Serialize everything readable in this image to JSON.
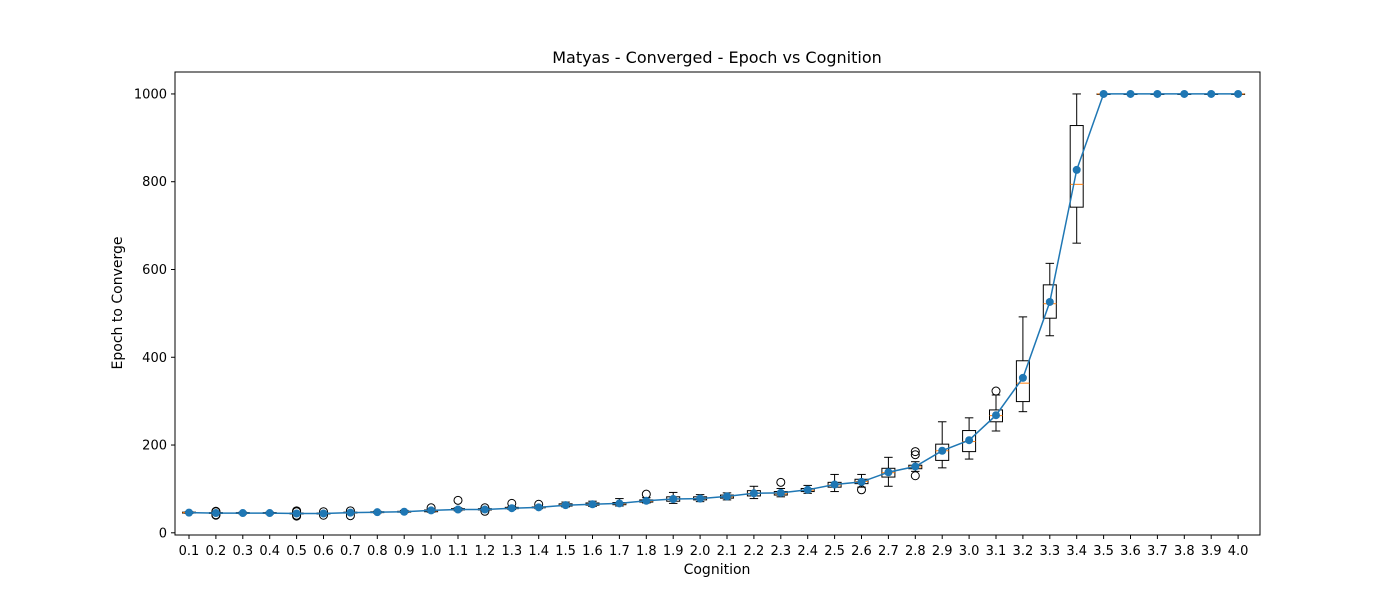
{
  "chart_data": {
    "type": "box",
    "title": "Matyas - Converged - Epoch vs Cognition",
    "xlabel": "Cognition",
    "ylabel": "Epoch to Converge",
    "ylim": [
      -5,
      1050
    ],
    "yticks": [
      0,
      200,
      400,
      600,
      800,
      1000
    ],
    "grid": false,
    "colors": {
      "box": "#000000",
      "median": "#ff7f0e",
      "mean": "#1f77b4"
    },
    "categories": [
      "0.1",
      "0.2",
      "0.3",
      "0.4",
      "0.5",
      "0.6",
      "0.7",
      "0.8",
      "0.9",
      "1.0",
      "1.1",
      "1.2",
      "1.3",
      "1.4",
      "1.5",
      "1.6",
      "1.7",
      "1.8",
      "1.9",
      "2.0",
      "2.1",
      "2.2",
      "2.3",
      "2.4",
      "2.5",
      "2.6",
      "2.7",
      "2.8",
      "2.9",
      "3.0",
      "3.1",
      "3.2",
      "3.3",
      "3.4",
      "3.5",
      "3.6",
      "3.7",
      "3.8",
      "3.9",
      "4.0"
    ],
    "boxes": [
      {
        "whislo": 44,
        "q1": 45,
        "med": 46,
        "q3": 47,
        "whishi": 48,
        "fliers": [],
        "mean": 46
      },
      {
        "whislo": 42,
        "q1": 44,
        "med": 45,
        "q3": 46,
        "whishi": 47,
        "fliers": [
          40,
          41,
          48,
          49
        ],
        "mean": 45
      },
      {
        "whislo": 43,
        "q1": 44,
        "med": 45,
        "q3": 46,
        "whishi": 47,
        "fliers": [],
        "mean": 45
      },
      {
        "whislo": 43,
        "q1": 44,
        "med": 45,
        "q3": 46,
        "whishi": 47,
        "fliers": [],
        "mean": 45
      },
      {
        "whislo": 41,
        "q1": 43,
        "med": 44,
        "q3": 45,
        "whishi": 46,
        "fliers": [
          38,
          40,
          48,
          50
        ],
        "mean": 44
      },
      {
        "whislo": 42,
        "q1": 43,
        "med": 44,
        "q3": 45,
        "whishi": 46,
        "fliers": [
          40,
          48
        ],
        "mean": 44
      },
      {
        "whislo": 43,
        "q1": 45,
        "med": 46,
        "q3": 47,
        "whishi": 48,
        "fliers": [
          39,
          50
        ],
        "mean": 46
      },
      {
        "whislo": 45,
        "q1": 46,
        "med": 47,
        "q3": 48,
        "whishi": 49,
        "fliers": [],
        "mean": 47
      },
      {
        "whislo": 46,
        "q1": 47,
        "med": 48,
        "q3": 49,
        "whishi": 51,
        "fliers": [],
        "mean": 48
      },
      {
        "whislo": 47,
        "q1": 48,
        "med": 50,
        "q3": 52,
        "whishi": 54,
        "fliers": [
          57
        ],
        "mean": 51
      },
      {
        "whislo": 50,
        "q1": 52,
        "med": 53,
        "q3": 55,
        "whishi": 57,
        "fliers": [
          74
        ],
        "mean": 53
      },
      {
        "whislo": 50,
        "q1": 52,
        "med": 53,
        "q3": 55,
        "whishi": 57,
        "fliers": [
          49,
          57
        ],
        "mean": 53
      },
      {
        "whislo": 53,
        "q1": 55,
        "med": 56,
        "q3": 58,
        "whishi": 60,
        "fliers": [
          67
        ],
        "mean": 56
      },
      {
        "whislo": 55,
        "q1": 57,
        "med": 58,
        "q3": 59,
        "whishi": 61,
        "fliers": [
          65
        ],
        "mean": 58
      },
      {
        "whislo": 59,
        "q1": 61,
        "med": 63,
        "q3": 66,
        "whishi": 70,
        "fliers": [],
        "mean": 63
      },
      {
        "whislo": 60,
        "q1": 63,
        "med": 65,
        "q3": 68,
        "whishi": 72,
        "fliers": [],
        "mean": 65
      },
      {
        "whislo": 61,
        "q1": 64,
        "med": 66,
        "q3": 69,
        "whishi": 78,
        "fliers": [],
        "mean": 67
      },
      {
        "whislo": 68,
        "q1": 70,
        "med": 72,
        "q3": 75,
        "whishi": 80,
        "fliers": [
          88
        ],
        "mean": 73
      },
      {
        "whislo": 67,
        "q1": 72,
        "med": 77,
        "q3": 82,
        "whishi": 92,
        "fliers": [],
        "mean": 77
      },
      {
        "whislo": 71,
        "q1": 75,
        "med": 78,
        "q3": 82,
        "whishi": 87,
        "fliers": [],
        "mean": 78
      },
      {
        "whislo": 75,
        "q1": 79,
        "med": 82,
        "q3": 86,
        "whishi": 91,
        "fliers": [],
        "mean": 83
      },
      {
        "whislo": 78,
        "q1": 84,
        "med": 90,
        "q3": 96,
        "whishi": 106,
        "fliers": [],
        "mean": 90
      },
      {
        "whislo": 82,
        "q1": 86,
        "med": 89,
        "q3": 94,
        "whishi": 101,
        "fliers": [
          115
        ],
        "mean": 91
      },
      {
        "whislo": 90,
        "q1": 94,
        "med": 97,
        "q3": 101,
        "whishi": 108,
        "fliers": [],
        "mean": 98
      },
      {
        "whislo": 94,
        "q1": 104,
        "med": 109,
        "q3": 115,
        "whishi": 133,
        "fliers": [],
        "mean": 110
      },
      {
        "whislo": 104,
        "q1": 112,
        "med": 117,
        "q3": 122,
        "whishi": 133,
        "fliers": [
          98
        ],
        "mean": 116
      },
      {
        "whislo": 106,
        "q1": 127,
        "med": 137,
        "q3": 147,
        "whishi": 172,
        "fliers": [],
        "mean": 138
      },
      {
        "whislo": 140,
        "q1": 146,
        "med": 150,
        "q3": 154,
        "whishi": 162,
        "fliers": [
          130,
          178,
          185
        ],
        "mean": 151
      },
      {
        "whislo": 148,
        "q1": 165,
        "med": 187,
        "q3": 202,
        "whishi": 253,
        "fliers": [],
        "mean": 187
      },
      {
        "whislo": 168,
        "q1": 185,
        "med": 208,
        "q3": 233,
        "whishi": 262,
        "fliers": [],
        "mean": 211
      },
      {
        "whislo": 232,
        "q1": 253,
        "med": 267,
        "q3": 280,
        "whishi": 314,
        "fliers": [
          323
        ],
        "mean": 268
      },
      {
        "whislo": 276,
        "q1": 299,
        "med": 341,
        "q3": 392,
        "whishi": 492,
        "fliers": [],
        "mean": 353
      },
      {
        "whislo": 449,
        "q1": 489,
        "med": 522,
        "q3": 565,
        "whishi": 614,
        "fliers": [],
        "mean": 526
      },
      {
        "whislo": 660,
        "q1": 742,
        "med": 794,
        "q3": 928,
        "whishi": 1000,
        "fliers": [],
        "mean": 827
      },
      {
        "whislo": 1000,
        "q1": 1000,
        "med": 1000,
        "q3": 1000,
        "whishi": 1000,
        "fliers": [],
        "mean": 1000
      },
      {
        "whislo": 1000,
        "q1": 1000,
        "med": 1000,
        "q3": 1000,
        "whishi": 1000,
        "fliers": [],
        "mean": 1000
      },
      {
        "whislo": 1000,
        "q1": 1000,
        "med": 1000,
        "q3": 1000,
        "whishi": 1000,
        "fliers": [],
        "mean": 1000
      },
      {
        "whislo": 1000,
        "q1": 1000,
        "med": 1000,
        "q3": 1000,
        "whishi": 1000,
        "fliers": [],
        "mean": 1000
      },
      {
        "whislo": 1000,
        "q1": 1000,
        "med": 1000,
        "q3": 1000,
        "whishi": 1000,
        "fliers": [],
        "mean": 1000
      },
      {
        "whislo": 1000,
        "q1": 1000,
        "med": 1000,
        "q3": 1000,
        "whishi": 1000,
        "fliers": [],
        "mean": 1000
      }
    ]
  }
}
